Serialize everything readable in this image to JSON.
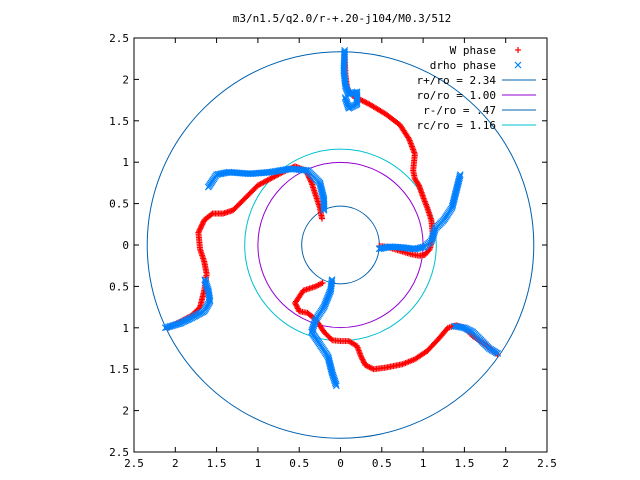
{
  "chart_data": {
    "type": "scatter",
    "title": "m3/n1.5/q2.0/r-+.20-j104/M0.3/512",
    "xlabel": "",
    "ylabel": "",
    "xlim": [
      -2.5,
      2.5
    ],
    "ylim": [
      -2.5,
      2.5
    ],
    "grid": false,
    "legend_position": "top-right",
    "x_ticks": [
      -2.5,
      -2,
      -1.5,
      -1,
      -0.5,
      0,
      0.5,
      1,
      1.5,
      2,
      2.5
    ],
    "x_tick_labels": [
      "2.5",
      "2",
      "1.5",
      "1",
      "0.5",
      "0",
      "0.5",
      "1",
      "1.5",
      "2",
      "2.5"
    ],
    "y_ticks": [
      2.5,
      2,
      1.5,
      1,
      0.5,
      0,
      -0.5,
      -1,
      -1.5,
      -2,
      -2.5
    ],
    "y_tick_labels": [
      "2.5",
      "2",
      "1.5",
      "1",
      "0.5",
      "0",
      "0.5",
      "1",
      "1.5",
      "2",
      "2.5"
    ],
    "series": [
      {
        "name": "W phase",
        "marker": "plus",
        "color": "#ff0000",
        "arms": [
          [
            [
              0.05,
              2.3
            ],
            [
              0.06,
              2.05
            ],
            [
              0.08,
              1.9
            ],
            [
              0.15,
              1.8
            ],
            [
              0.35,
              1.7
            ],
            [
              0.55,
              1.58
            ],
            [
              0.72,
              1.45
            ],
            [
              0.83,
              1.28
            ],
            [
              0.9,
              1.1
            ],
            [
              0.88,
              0.9
            ],
            [
              0.9,
              0.8
            ],
            [
              0.95,
              0.72
            ],
            [
              1.0,
              0.58
            ],
            [
              1.05,
              0.45
            ],
            [
              1.1,
              0.3
            ],
            [
              1.12,
              0.1
            ],
            [
              1.08,
              -0.05
            ],
            [
              1.02,
              -0.12
            ],
            [
              0.95,
              -0.13
            ],
            [
              0.85,
              -0.11
            ],
            [
              0.75,
              -0.08
            ],
            [
              0.65,
              -0.05
            ],
            [
              0.55,
              -0.02
            ],
            [
              0.45,
              -0.01
            ]
          ],
          [
            [
              1.9,
              -1.32
            ],
            [
              1.75,
              -1.2
            ],
            [
              1.6,
              -1.1
            ],
            [
              1.5,
              -1.0
            ],
            [
              1.4,
              -0.97
            ],
            [
              1.3,
              -1.0
            ],
            [
              1.2,
              -1.12
            ],
            [
              1.05,
              -1.28
            ],
            [
              0.9,
              -1.38
            ],
            [
              0.75,
              -1.44
            ],
            [
              0.55,
              -1.48
            ],
            [
              0.4,
              -1.5
            ],
            [
              0.3,
              -1.45
            ],
            [
              0.25,
              -1.35
            ],
            [
              0.2,
              -1.22
            ],
            [
              0.1,
              -1.16
            ],
            [
              0.0,
              -1.16
            ],
            [
              -0.1,
              -1.15
            ],
            [
              -0.2,
              -1.05
            ],
            [
              -0.3,
              -0.9
            ],
            [
              -0.4,
              -0.82
            ],
            [
              -0.5,
              -0.8
            ],
            [
              -0.55,
              -0.7
            ],
            [
              -0.45,
              -0.55
            ],
            [
              -0.3,
              -0.5
            ],
            [
              -0.2,
              -0.45
            ]
          ],
          [
            [
              -2.1,
              -1.0
            ],
            [
              -1.95,
              -0.93
            ],
            [
              -1.8,
              -0.85
            ],
            [
              -1.7,
              -0.75
            ],
            [
              -1.65,
              -0.55
            ],
            [
              -1.62,
              -0.35
            ],
            [
              -1.65,
              -0.2
            ],
            [
              -1.7,
              -0.05
            ],
            [
              -1.72,
              0.15
            ],
            [
              -1.65,
              0.3
            ],
            [
              -1.55,
              0.38
            ],
            [
              -1.42,
              0.38
            ],
            [
              -1.3,
              0.42
            ],
            [
              -1.2,
              0.52
            ],
            [
              -1.1,
              0.62
            ],
            [
              -1.0,
              0.72
            ],
            [
              -0.85,
              0.8
            ],
            [
              -0.7,
              0.88
            ],
            [
              -0.55,
              0.95
            ],
            [
              -0.42,
              0.9
            ],
            [
              -0.35,
              0.75
            ],
            [
              -0.3,
              0.6
            ],
            [
              -0.25,
              0.45
            ],
            [
              -0.22,
              0.3
            ]
          ]
        ]
      },
      {
        "name": "drho phase",
        "marker": "cross",
        "color": "#0080ff",
        "arms": [
          [
            [
              0.05,
              2.35
            ],
            [
              0.04,
              2.1
            ],
            [
              0.06,
              1.92
            ],
            [
              0.1,
              1.82
            ],
            [
              0.2,
              1.85
            ],
            [
              0.2,
              1.7
            ],
            [
              0.1,
              1.65
            ],
            [
              0.05,
              1.8
            ]
          ],
          [
            [
              1.45,
              0.85
            ],
            [
              1.4,
              0.65
            ],
            [
              1.35,
              0.45
            ],
            [
              1.25,
              0.3
            ],
            [
              1.15,
              0.2
            ],
            [
              1.1,
              0.05
            ],
            [
              1.02,
              -0.02
            ],
            [
              0.9,
              -0.05
            ],
            [
              0.75,
              -0.03
            ],
            [
              0.6,
              -0.02
            ],
            [
              0.45,
              -0.05
            ]
          ],
          [
            [
              1.38,
              -0.98
            ],
            [
              1.5,
              -1.0
            ],
            [
              1.6,
              -1.05
            ],
            [
              1.7,
              -1.15
            ],
            [
              1.8,
              -1.25
            ],
            [
              1.92,
              -1.32
            ]
          ],
          [
            [
              -0.05,
              -1.7
            ],
            [
              -0.1,
              -1.55
            ],
            [
              -0.15,
              -1.35
            ],
            [
              -0.25,
              -1.2
            ],
            [
              -0.35,
              -1.05
            ],
            [
              -0.3,
              -0.9
            ],
            [
              -0.2,
              -0.75
            ],
            [
              -0.12,
              -0.55
            ],
            [
              -0.1,
              -0.4
            ]
          ],
          [
            [
              -2.12,
              -1.0
            ],
            [
              -1.95,
              -0.95
            ],
            [
              -1.8,
              -0.88
            ],
            [
              -1.65,
              -0.8
            ],
            [
              -1.58,
              -0.68
            ],
            [
              -1.6,
              -0.55
            ],
            [
              -1.65,
              -0.4
            ]
          ],
          [
            [
              -1.6,
              0.7
            ],
            [
              -1.5,
              0.85
            ],
            [
              -1.35,
              0.88
            ],
            [
              -1.1,
              0.86
            ],
            [
              -0.85,
              0.88
            ],
            [
              -0.6,
              0.92
            ],
            [
              -0.4,
              0.9
            ],
            [
              -0.25,
              0.75
            ],
            [
              -0.2,
              0.55
            ],
            [
              -0.2,
              0.4
            ]
          ]
        ]
      },
      {
        "name": "r+/ro = 2.34",
        "type": "circle",
        "radius": 2.34,
        "color": "#0060ad"
      },
      {
        "name": "ro/ro = 1.00",
        "type": "circle",
        "radius": 1.0,
        "color": "#9400d3"
      },
      {
        "name": "r-/ro = .47",
        "type": "circle",
        "radius": 0.47,
        "color": "#0060ad"
      },
      {
        "name": "rc/ro = 1.16",
        "type": "circle",
        "radius": 1.16,
        "color": "#00c0d0"
      }
    ]
  }
}
